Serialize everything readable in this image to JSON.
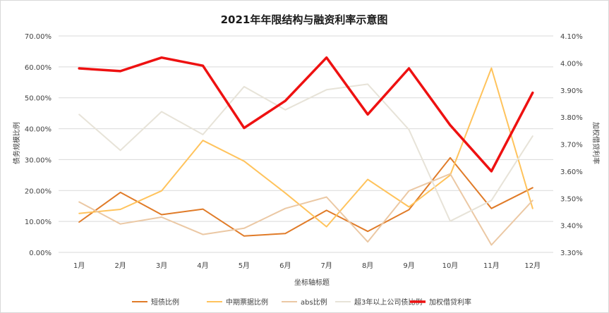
{
  "chart_data": {
    "type": "line",
    "title": "2021年年限结构与融资利率示意图",
    "xlabel": "坐标轴标题",
    "ylabel_left": "债务规模比例",
    "ylabel_right": "加权借贷利率",
    "categories": [
      "1月",
      "2月",
      "3月",
      "4月",
      "5月",
      "6月",
      "7月",
      "8月",
      "9月",
      "10月",
      "11月",
      "12月"
    ],
    "y_left": {
      "lim": [
        0,
        0.7
      ],
      "ticks": [
        0,
        0.1,
        0.2,
        0.3,
        0.4,
        0.5,
        0.6,
        0.7
      ],
      "tick_labels": [
        "0.00%",
        "10.00%",
        "20.00%",
        "30.00%",
        "40.00%",
        "50.00%",
        "60.00%",
        "70.00%"
      ]
    },
    "y_right": {
      "lim": [
        0.033,
        0.041
      ],
      "ticks": [
        0.033,
        0.034,
        0.035,
        0.036,
        0.037,
        0.038,
        0.039,
        0.04,
        0.041
      ],
      "tick_labels": [
        "3.30%",
        "3.40%",
        "3.50%",
        "3.60%",
        "3.70%",
        "3.80%",
        "3.90%",
        "4.00%",
        "4.10%"
      ]
    },
    "grid": true,
    "legend_position": "bottom",
    "series": [
      {
        "name": "短债比例",
        "axis": "left",
        "color": "#E07B28",
        "width": 2,
        "values": [
          0.098,
          0.194,
          0.122,
          0.14,
          0.053,
          0.061,
          0.136,
          0.068,
          0.138,
          0.306,
          0.142,
          0.209
        ]
      },
      {
        "name": "中期票据比例",
        "axis": "left",
        "color": "#FFC35C",
        "width": 2,
        "values": [
          0.126,
          0.139,
          0.199,
          0.362,
          0.295,
          0.192,
          0.083,
          0.236,
          0.147,
          0.25,
          0.596,
          0.142
        ]
      },
      {
        "name": "abs比例",
        "axis": "left",
        "color": "#EBC8A4",
        "width": 2,
        "values": [
          0.163,
          0.092,
          0.114,
          0.058,
          0.078,
          0.142,
          0.179,
          0.034,
          0.199,
          0.254,
          0.024,
          0.168
        ]
      },
      {
        "name": "超3年以上公司债比例",
        "axis": "left",
        "color": "#E7E3D8",
        "width": 2,
        "values": [
          0.446,
          0.33,
          0.455,
          0.381,
          0.536,
          0.461,
          0.526,
          0.544,
          0.397,
          0.101,
          0.168,
          0.376
        ]
      },
      {
        "name": "加权借贷利率",
        "axis": "right",
        "color": "#EE1111",
        "width": 3.5,
        "values": [
          0.0398,
          0.0397,
          0.0402,
          0.0399,
          0.0376,
          0.0386,
          0.0402,
          0.0381,
          0.0398,
          0.0377,
          0.036,
          0.0389
        ]
      }
    ]
  }
}
